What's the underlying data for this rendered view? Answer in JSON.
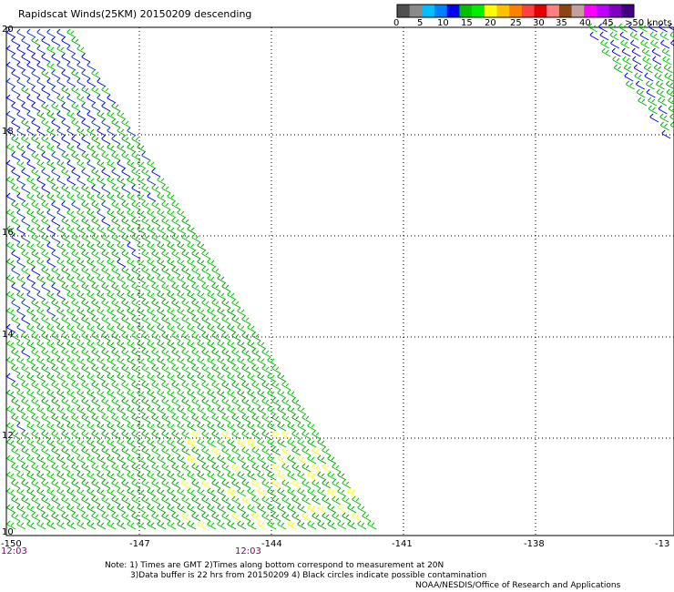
{
  "title": "Rapidscat Winds(25KM) 20150209 descending",
  "colorbar": {
    "colors": [
      "#505050",
      "#8a8a8a",
      "#00bfff",
      "#0080ff",
      "#0000ee",
      "#00c000",
      "#00ee00",
      "#ffff00",
      "#ffc000",
      "#ff8000",
      "#ff4040",
      "#e00000",
      "#ff8080",
      "#8b4513",
      "#c0a0a0",
      "#ff00ff",
      "#c000ff",
      "#8000c0",
      "#400080"
    ],
    "labels": [
      "0",
      "5",
      "10",
      "15",
      "20",
      "25",
      "30",
      "35",
      "40",
      "45",
      ">50 knots"
    ]
  },
  "map": {
    "lat_labels": [
      "20",
      "18",
      "16",
      "14",
      "12",
      "10"
    ],
    "lon_labels": [
      "-150",
      "-147",
      "-144",
      "-141",
      "-138",
      "-13"
    ],
    "time_labels": [
      "12:03",
      "12:03"
    ]
  },
  "notes": {
    "line1": "Note: 1) Times are GMT 2)Times along bottom correspond to measurement at 20N",
    "line2": "3)Data buffer is 22 hrs from 20150209 4) Black circles indicate possible contamination",
    "line3": "NOAA/NESDIS/Office of Research and Applications"
  }
}
